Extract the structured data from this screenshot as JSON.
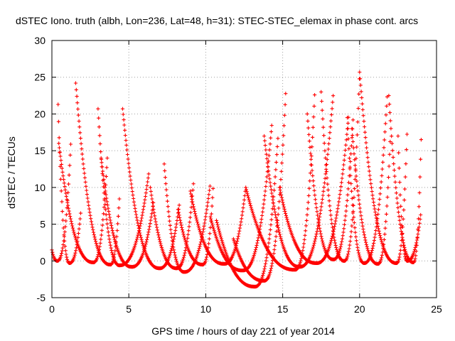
{
  "chart_data": {
    "type": "scatter",
    "title": "dSTEC Iono. truth (albh, Lon=236, Lat=48, h=31): STEC-STEC_elemax in phase cont. arcs",
    "xlabel": "GPS time / hours of day 221 of year 2014",
    "ylabel": "dSTEC  / TECUs",
    "xlim": [
      0,
      25
    ],
    "ylim": [
      -5,
      30
    ],
    "xticks": [
      0,
      5,
      10,
      15,
      20,
      25
    ],
    "yticks": [
      -5,
      0,
      5,
      10,
      15,
      20,
      25,
      30
    ],
    "grid": true,
    "marker": "plus",
    "color": "#ff0000",
    "arcs": [
      {
        "start": 0.0,
        "min_t": 0.35,
        "end": 1.25,
        "peak_start": 1.5,
        "peak_end": 17.0,
        "trough": 0.0
      },
      {
        "start": 0.4,
        "min_t": 1.15,
        "end": 1.9,
        "peak_start": 21.3,
        "peak_end": 7.2,
        "trough": -0.3
      },
      {
        "start": 0.45,
        "min_t": 2.7,
        "end": 3.6,
        "peak_start": 16.0,
        "peak_end": 14.0,
        "trough": -0.2
      },
      {
        "start": 1.55,
        "min_t": 3.8,
        "end": 4.4,
        "peak_start": 24.2,
        "peak_end": 9.0,
        "trough": -0.5
      },
      {
        "start": 3.0,
        "min_t": 4.4,
        "end": 6.3,
        "peak_start": 20.7,
        "peak_end": 12.0,
        "trough": -0.6
      },
      {
        "start": 3.2,
        "min_t": 5.2,
        "end": 6.6,
        "peak_start": 14.0,
        "peak_end": 8.0,
        "trough": -0.8
      },
      {
        "start": 4.6,
        "min_t": 7.0,
        "end": 8.3,
        "peak_start": 20.7,
        "peak_end": 8.0,
        "trough": -1.0
      },
      {
        "start": 6.4,
        "min_t": 8.1,
        "end": 9.2,
        "peak_start": 10.0,
        "peak_end": 10.5,
        "trough": -1.0
      },
      {
        "start": 7.3,
        "min_t": 8.6,
        "end": 10.3,
        "peak_start": 13.2,
        "peak_end": 10.6,
        "trough": -1.5
      },
      {
        "start": 8.2,
        "min_t": 9.8,
        "end": 10.5,
        "peak_start": 7.0,
        "peak_end": 10.8,
        "trough": -0.5
      },
      {
        "start": 9.0,
        "min_t": 11.2,
        "end": 12.6,
        "peak_start": 9.5,
        "peak_end": 10.0,
        "trough": -0.4
      },
      {
        "start": 10.3,
        "min_t": 12.4,
        "end": 14.3,
        "peak_start": 6.0,
        "peak_end": 18.7,
        "trough": -1.3
      },
      {
        "start": 10.7,
        "min_t": 13.2,
        "end": 14.7,
        "peak_start": 5.5,
        "peak_end": 17.0,
        "trough": -3.5
      },
      {
        "start": 11.8,
        "min_t": 13.8,
        "end": 15.2,
        "peak_start": 3.0,
        "peak_end": 23.0,
        "trough": -2.7
      },
      {
        "start": 12.6,
        "min_t": 15.8,
        "end": 17.1,
        "peak_start": 10.0,
        "peak_end": 23.5,
        "trough": -1.2
      },
      {
        "start": 13.8,
        "min_t": 16.1,
        "end": 18.3,
        "peak_start": 17.0,
        "peak_end": 23.0,
        "trough": -0.8
      },
      {
        "start": 14.8,
        "min_t": 17.2,
        "end": 19.3,
        "peak_start": 10.0,
        "peak_end": 20.0,
        "trough": -0.3
      },
      {
        "start": 16.6,
        "min_t": 18.3,
        "end": 19.6,
        "peak_start": 20.0,
        "peak_end": 20.1,
        "trough": 0.2
      },
      {
        "start": 17.5,
        "min_t": 19.0,
        "end": 20.0,
        "peak_start": 23.0,
        "peak_end": 25.7,
        "trough": 0.0
      },
      {
        "start": 19.2,
        "min_t": 20.3,
        "end": 21.8,
        "peak_start": 19.5,
        "peak_end": 22.7,
        "trough": -0.3
      },
      {
        "start": 19.5,
        "min_t": 21.2,
        "end": 22.0,
        "peak_start": 18.0,
        "peak_end": 17.0,
        "trough": -0.4
      },
      {
        "start": 20.0,
        "min_t": 22.4,
        "end": 23.1,
        "peak_start": 25.7,
        "peak_end": 18.5,
        "trough": -0.3
      },
      {
        "start": 21.9,
        "min_t": 23.5,
        "end": 24.0,
        "peak_start": 22.5,
        "peak_end": 16.5,
        "trough": -0.2
      },
      {
        "start": 22.5,
        "min_t": 23.1,
        "end": 24.0,
        "peak_start": 17.0,
        "peak_end": 6.8,
        "trough": 0.0
      }
    ]
  }
}
